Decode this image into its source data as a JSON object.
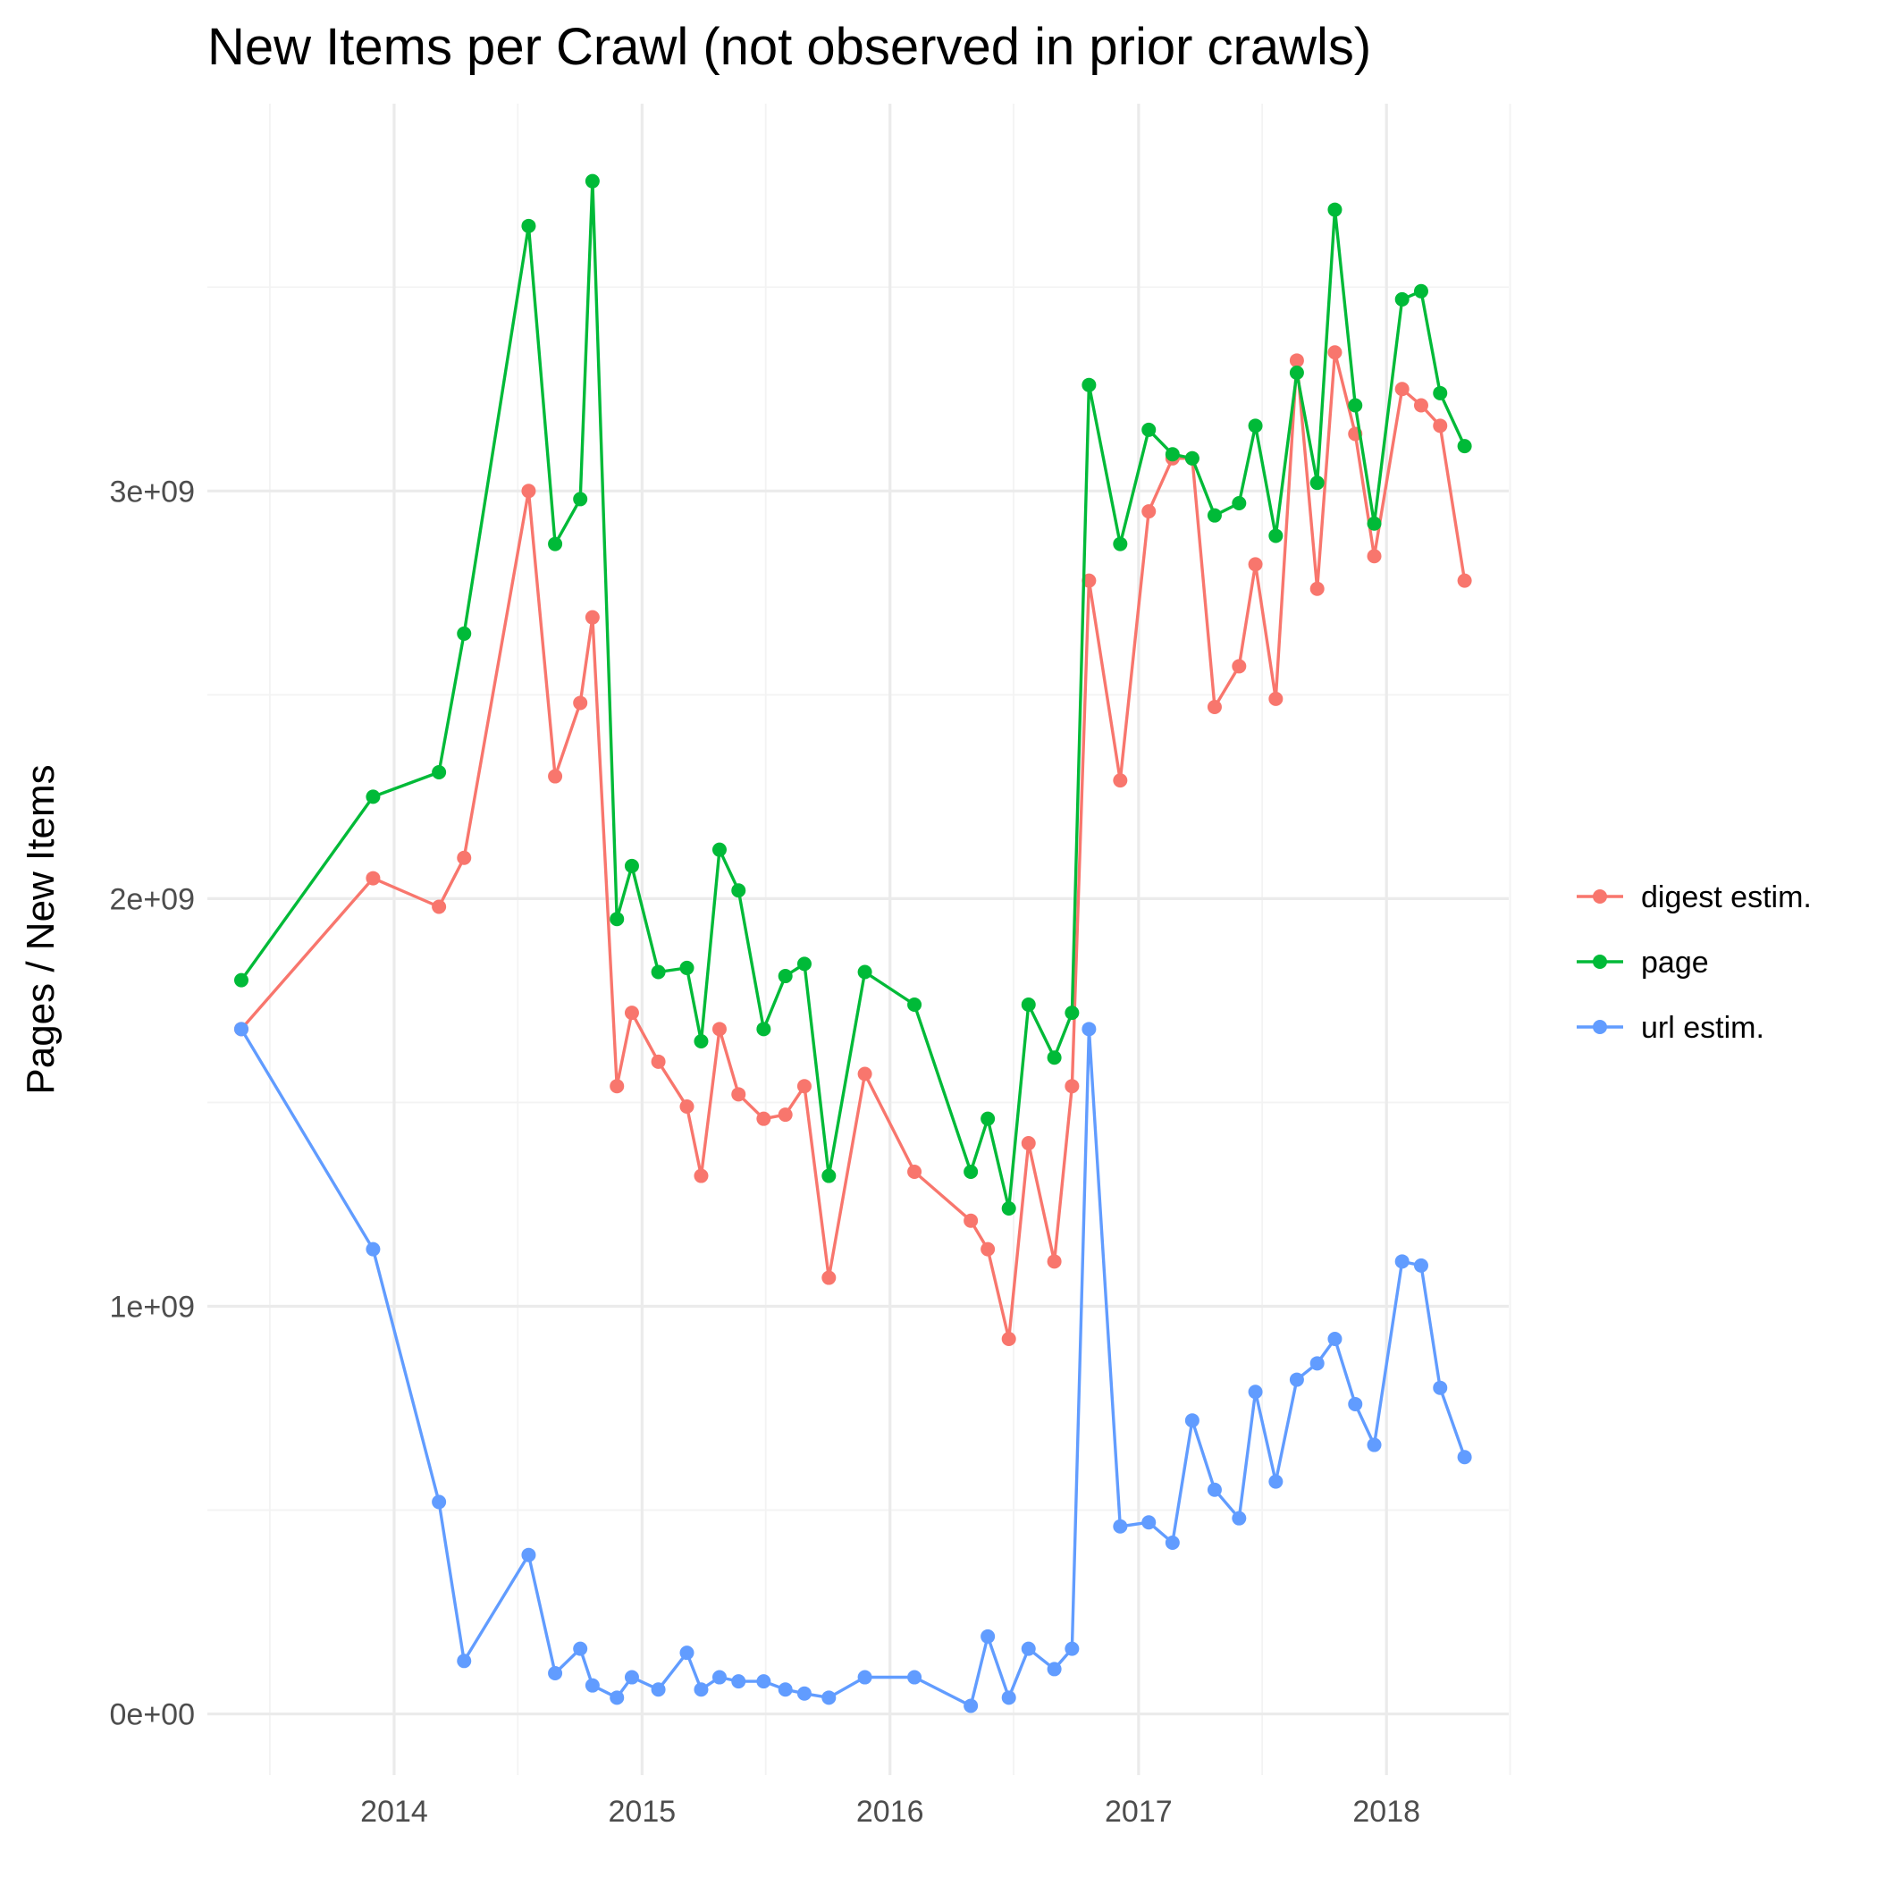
{
  "chart_data": {
    "type": "line",
    "title": "New Items per Crawl (not observed in prior crawls)",
    "xlabel": "",
    "ylabel": "Pages / New Items",
    "xlim": [
      "2013-04-01",
      "2018-06-30"
    ],
    "ylim": [
      -150000000,
      3950000000
    ],
    "x_ticks": [
      {
        "label": "2014",
        "date": "2014-01-01"
      },
      {
        "label": "2015",
        "date": "2015-01-01"
      },
      {
        "label": "2016",
        "date": "2016-01-01"
      },
      {
        "label": "2017",
        "date": "2017-01-01"
      },
      {
        "label": "2018",
        "date": "2018-01-01"
      }
    ],
    "x_minor_ticks": [
      "2013-07-02",
      "2014-07-02",
      "2015-07-02",
      "2016-07-01",
      "2017-07-02",
      "2018-07-02"
    ],
    "y_ticks": [
      {
        "label": "0e+00",
        "value": 0
      },
      {
        "label": "1e+09",
        "value": 1000000000
      },
      {
        "label": "2e+09",
        "value": 2000000000
      },
      {
        "label": "3e+09",
        "value": 3000000000
      }
    ],
    "y_minor_ticks": [
      500000000,
      1500000000,
      2500000000,
      3500000000
    ],
    "grid": true,
    "legend_position": "right",
    "x": [
      "2013-05-21",
      "2013-12-01",
      "2014-03-08",
      "2014-04-14",
      "2014-07-18",
      "2014-08-26",
      "2014-10-02",
      "2014-10-20",
      "2014-11-25",
      "2014-12-17",
      "2015-01-25",
      "2015-03-08",
      "2015-03-29",
      "2015-04-25",
      "2015-05-23",
      "2015-06-29",
      "2015-07-31",
      "2015-08-28",
      "2015-10-03",
      "2015-11-25",
      "2016-02-06",
      "2016-04-29",
      "2016-05-24",
      "2016-06-24",
      "2016-07-23",
      "2016-08-30",
      "2016-09-25",
      "2016-10-20",
      "2016-12-05",
      "2017-01-16",
      "2017-02-20",
      "2017-03-21",
      "2017-04-23",
      "2017-05-29",
      "2017-06-22",
      "2017-07-22",
      "2017-08-22",
      "2017-09-21",
      "2017-10-17",
      "2017-11-16",
      "2017-12-14",
      "2018-01-24",
      "2018-02-21",
      "2018-03-21",
      "2018-04-26"
    ],
    "series": [
      {
        "name": "digest estim.",
        "color": "#F8766D",
        "values": [
          1680000000,
          2050000000,
          1980000000,
          2100000000,
          3000000000,
          2300000000,
          2480000000,
          2690000000,
          1540000000,
          1720000000,
          1600000000,
          1490000000,
          1320000000,
          1680000000,
          1520000000,
          1460000000,
          1470000000,
          1540000000,
          1070000000,
          1570000000,
          1330000000,
          1210000000,
          1140000000,
          920000000,
          1400000000,
          1110000000,
          1540000000,
          2780000000,
          2290000000,
          2950000000,
          3080000000,
          3080000000,
          2470000000,
          2570000000,
          2820000000,
          2490000000,
          3320000000,
          2760000000,
          3340000000,
          3140000000,
          2840000000,
          3250000000,
          3210000000,
          3160000000,
          2780000000
        ]
      },
      {
        "name": "page",
        "color": "#00BA38",
        "values": [
          1800000000,
          2250000000,
          2310000000,
          2650000000,
          3650000000,
          2870000000,
          2980000000,
          3760000000,
          1950000000,
          2080000000,
          1820000000,
          1830000000,
          1650000000,
          2120000000,
          2020000000,
          1680000000,
          1810000000,
          1840000000,
          1320000000,
          1820000000,
          1740000000,
          1330000000,
          1460000000,
          1240000000,
          1740000000,
          1610000000,
          1720000000,
          3260000000,
          2870000000,
          3150000000,
          3090000000,
          3080000000,
          2940000000,
          2970000000,
          3160000000,
          2890000000,
          3290000000,
          3020000000,
          3690000000,
          3210000000,
          2920000000,
          3470000000,
          3490000000,
          3240000000,
          3110000000
        ]
      },
      {
        "name": "url estim.",
        "color": "#619CFF",
        "values": [
          1680000000,
          1140000000,
          520000000,
          130000000,
          390000000,
          100000000,
          160000000,
          70000000,
          40000000,
          90000000,
          60000000,
          150000000,
          60000000,
          90000000,
          80000000,
          80000000,
          60000000,
          50000000,
          40000000,
          90000000,
          90000000,
          20000000,
          190000000,
          40000000,
          160000000,
          110000000,
          160000000,
          1680000000,
          460000000,
          470000000,
          420000000,
          720000000,
          550000000,
          480000000,
          790000000,
          570000000,
          820000000,
          860000000,
          920000000,
          760000000,
          660000000,
          1110000000,
          1100000000,
          800000000,
          630000000
        ]
      }
    ]
  }
}
